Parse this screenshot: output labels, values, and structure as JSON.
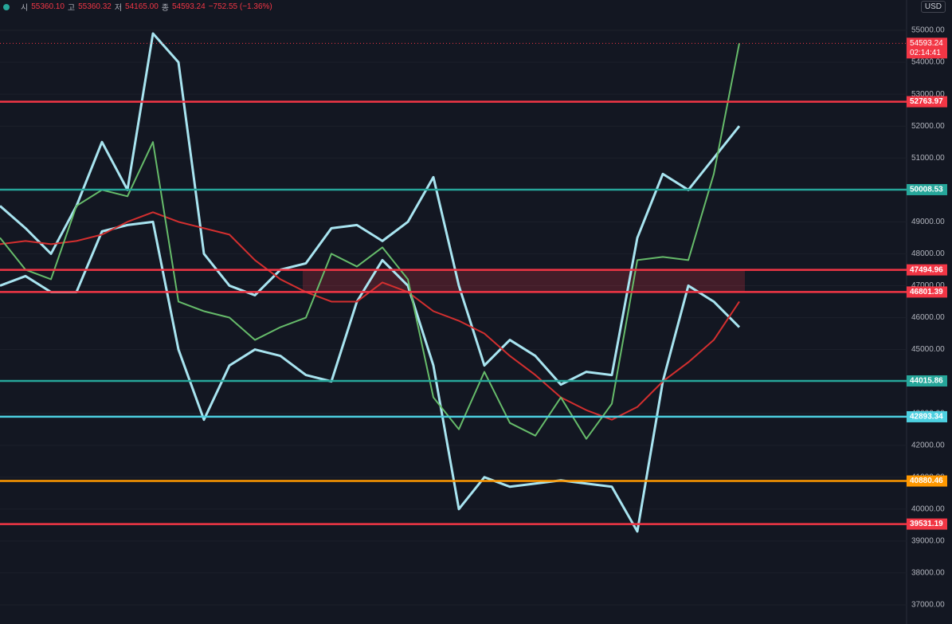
{
  "header": {
    "items": [
      {
        "label": "시",
        "value": "55360.10"
      },
      {
        "label": "고",
        "value": "55360.32"
      },
      {
        "label": "저",
        "value": "54165.00"
      },
      {
        "label": "종",
        "value": "54593.24"
      }
    ],
    "change": "−752.55 (−1.36%)",
    "currency": "USD"
  },
  "chart_data": {
    "type": "line",
    "categories": [
      null,
      null,
      null,
      null,
      null,
      null,
      null,
      null,
      null,
      null,
      null,
      null,
      null,
      null,
      null,
      null,
      null,
      null,
      null,
      null,
      null,
      null,
      null,
      null,
      null,
      null,
      null,
      null,
      null,
      null
    ],
    "series": [
      {
        "color": "#a8e4f0",
        "values": [
          49500,
          48800,
          48000,
          49500,
          51500,
          50000,
          54900,
          54000,
          48000,
          47000,
          46700,
          47500,
          47700,
          48800,
          48900,
          48400,
          49000,
          50400,
          47000,
          44500,
          45300,
          44800,
          43900,
          44300,
          44200,
          48500,
          50500,
          50000,
          51000,
          52000
        ]
      },
      {
        "color": "#a8e4f0",
        "values": [
          47000,
          47300,
          46800,
          46800,
          48700,
          48900,
          49000,
          45000,
          42800,
          44500,
          45000,
          44800,
          44200,
          44000,
          46500,
          47800,
          47000,
          44500,
          40000,
          41000,
          40700,
          40800,
          40900,
          40800,
          40700,
          39300,
          44000,
          47000,
          46500,
          45700
        ]
      },
      {
        "color": "#d32f2f",
        "values": [
          48300,
          48400,
          48300,
          48400,
          48600,
          49000,
          49300,
          49000,
          48800,
          48600,
          47800,
          47200,
          46800,
          46500,
          46500,
          47100,
          46800,
          46200,
          45900,
          45500,
          44800,
          44200,
          43500,
          43100,
          42800,
          43200,
          44000,
          44600,
          45300,
          46500
        ]
      },
      {
        "color": "#66bb6a",
        "values": [
          48500,
          47500,
          47200,
          49500,
          50000,
          49800,
          51500,
          46500,
          46200,
          46000,
          45300,
          45700,
          46000,
          48000,
          47600,
          48200,
          47200,
          43500,
          42500,
          44300,
          42700,
          42300,
          43500,
          42200,
          43300,
          47800,
          47900,
          47800,
          50500,
          54593.24
        ]
      }
    ],
    "ylim": [
      36400,
      55950
    ],
    "yticks": [
      {
        "value": 37000,
        "label": "37000.00"
      },
      {
        "value": 38000,
        "label": "38000.00"
      },
      {
        "value": 39000,
        "label": "39000.00"
      },
      {
        "value": 40000,
        "label": "40000.00"
      },
      {
        "value": 41000,
        "label": "41000.00"
      },
      {
        "value": 42000,
        "label": "42000.00"
      },
      {
        "value": 43000,
        "label": "43000.00"
      },
      {
        "value": 44000,
        "label": "44000.00"
      },
      {
        "value": 45000,
        "label": "45000.00"
      },
      {
        "value": 46000,
        "label": "46000.00"
      },
      {
        "value": 47000,
        "label": "47000.00"
      },
      {
        "value": 48000,
        "label": "48000.00"
      },
      {
        "value": 49000,
        "label": "49000.00"
      },
      {
        "value": 50000,
        "label": "50000.00"
      },
      {
        "value": 51000,
        "label": "51000.00"
      },
      {
        "value": 52000,
        "label": "52000.00"
      },
      {
        "value": 53000,
        "label": "53000.00"
      },
      {
        "value": 54000,
        "label": "54000.00"
      },
      {
        "value": 55000,
        "label": "55000.00"
      }
    ],
    "grid": true,
    "levels": [
      {
        "value": 52763.97,
        "color": "#f23645"
      },
      {
        "value": 50008.53,
        "color": "#26a69a"
      },
      {
        "value": 47494.96,
        "color": "#f23645"
      },
      {
        "value": 46801.39,
        "color": "#f23645"
      },
      {
        "value": 44015.86,
        "color": "#26a69a"
      },
      {
        "value": 42893.34,
        "color": "#4dd0e1"
      },
      {
        "value": 40880.46,
        "color": "#ff9800"
      },
      {
        "value": 39531.19,
        "color": "#f23645"
      }
    ],
    "last_price": {
      "value": 54593.24,
      "countdown": "02:14:41",
      "color": "#f23645"
    }
  }
}
